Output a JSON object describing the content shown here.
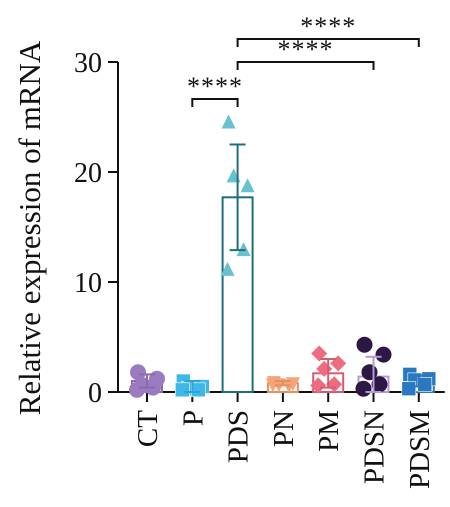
{
  "chart_data": {
    "type": "bar",
    "title": "",
    "xlabel": "",
    "ylabel": "Relative expression of mRNA",
    "ylim": [
      0,
      30
    ],
    "yticks": [
      "0",
      "10",
      "20",
      "30"
    ],
    "grid": false,
    "legend": "none",
    "categories": [
      "CT",
      "P",
      "PDS",
      "PN",
      "PM",
      "PDSN",
      "PDSM"
    ],
    "series": [
      {
        "values": [
          1.0,
          0.5,
          17.7,
          0.8,
          1.7,
          1.4,
          1.0
        ],
        "errors": [
          0.6,
          0.5,
          4.8,
          0.2,
          1.3,
          1.8,
          0.5
        ],
        "points": [
          [
            1.8,
            1.2,
            0.6,
            0.4,
            0.2
          ],
          [
            1.0,
            0.5,
            0.3,
            0.2,
            0.2
          ],
          [
            24.5,
            18.7,
            19.6,
            12.9,
            11.1
          ],
          [
            0.9,
            0.8,
            0.7,
            0.6,
            0.7
          ],
          [
            3.5,
            2.6,
            2.1,
            0.7,
            0.6
          ],
          [
            4.3,
            3.4,
            1.8,
            0.7,
            0.3
          ],
          [
            1.6,
            1.2,
            1.1,
            0.7,
            0.3
          ]
        ]
      }
    ],
    "colors": [
      "#9b7bbf",
      "#3fb8e8",
      "#66c2cf",
      "#f4a478",
      "#ee6c7f",
      "#2c1745",
      "#2a79c0"
    ],
    "bar_edge_colors": [
      "#8b6aae",
      "#2aa4d6",
      "#1f6f7b",
      "#e2905f",
      "#d85a6d",
      "#b39ad1",
      "#2a79c0"
    ],
    "markers": [
      "circle",
      "square",
      "triangle",
      "triangle-down",
      "diamond",
      "circle",
      "square"
    ],
    "significance": [
      {
        "from": "P",
        "to": "PDS",
        "label": "****"
      },
      {
        "from": "PDS",
        "to": "PDSN",
        "label": "****"
      },
      {
        "from": "PDS",
        "to": "PDSM",
        "label": "****"
      }
    ]
  }
}
